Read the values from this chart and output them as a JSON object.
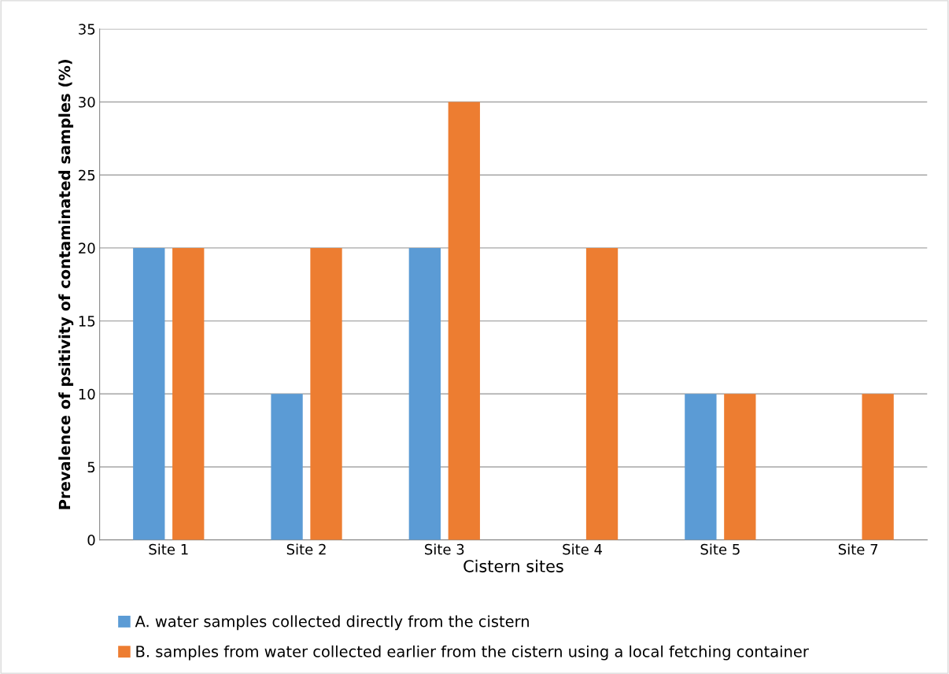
{
  "chart_data": {
    "type": "bar",
    "xlabel": "Cistern sites",
    "ylabel": "Prevalence of psitivity of contaminated samples (%)",
    "categories": [
      "Site 1",
      "Site 2",
      "Site 3",
      "Site 4",
      "Site 5",
      "Site 7"
    ],
    "series": [
      {
        "name": "A. water samples collected directly from the cistern",
        "color": "#5b9bd5",
        "values": [
          20,
          10,
          20,
          0,
          10,
          0
        ]
      },
      {
        "name": "B. samples from water collected earlier from the cistern using a local fetching container",
        "color": "#ed7d31",
        "values": [
          20,
          20,
          30,
          20,
          10,
          10
        ]
      }
    ],
    "ylim": [
      0,
      35
    ],
    "yticks": [
      0,
      5,
      10,
      15,
      20,
      25,
      30,
      35
    ],
    "grid": "y",
    "legend": "bottom"
  }
}
